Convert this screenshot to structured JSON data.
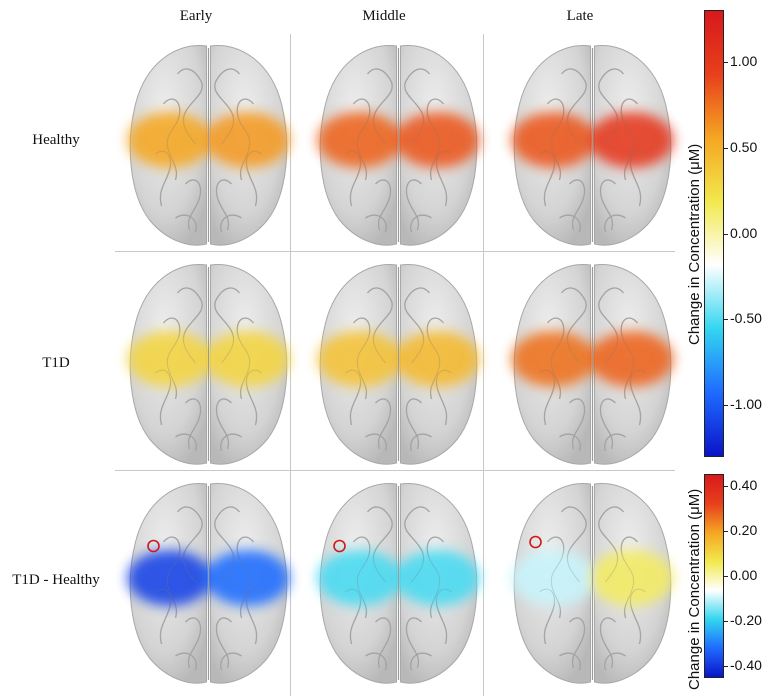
{
  "columns": [
    "Early",
    "Middle",
    "Late"
  ],
  "rows": [
    "Healthy",
    "T1D",
    "T1D - Healthy"
  ],
  "colorbars": [
    {
      "label": "Change in Concentration (μM)",
      "ticks": [
        "1.00",
        "0.50",
        "0.00",
        "-0.50",
        "-1.00"
      ],
      "range": [
        -1.3,
        1.3
      ],
      "colormap": [
        "#0a14c8",
        "#1f6bff",
        "#33d6f0",
        "#ffffff",
        "#f2e94e",
        "#f5a623",
        "#e8401c",
        "#d7191c"
      ]
    },
    {
      "label": "Change in Concentration (μM)",
      "ticks": [
        "0.40",
        "0.20",
        "0.00",
        "-0.20",
        "-0.40"
      ],
      "range": [
        -0.45,
        0.45
      ],
      "colormap": [
        "#0a14c8",
        "#1f6bff",
        "#33d6f0",
        "#ffffff",
        "#f2e94e",
        "#f5a623",
        "#e8401c",
        "#d7191c"
      ]
    }
  ],
  "activation": [
    [
      {
        "left": 0.55,
        "right": 0.6
      },
      {
        "left": 0.8,
        "right": 0.85
      },
      {
        "left": 0.85,
        "right": 1.0
      }
    ],
    [
      {
        "left": 0.3,
        "right": 0.3
      },
      {
        "left": 0.4,
        "right": 0.45
      },
      {
        "left": 0.75,
        "right": 0.8
      }
    ],
    [
      {
        "left": -0.38,
        "right": -0.32
      },
      {
        "left": -0.18,
        "right": -0.18
      },
      {
        "left": -0.1,
        "right": 0.05
      }
    ]
  ],
  "colors": {
    "brain": "#d4d4d4",
    "brain_shade": "#b8b8b8",
    "marker": "#d01818",
    "grid": "#c8c8c8"
  }
}
